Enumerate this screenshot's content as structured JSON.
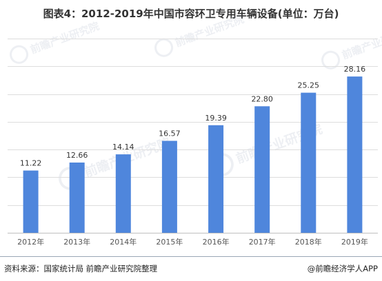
{
  "title": "图表4：2012-2019年中国市容环卫专用车辆设备(单位：万台)",
  "footer": {
    "source": "资料来源：国家统计局 前瞻产业研究院整理",
    "brand": "@前瞻经济学人APP"
  },
  "watermark": "前瞻产业研究院",
  "colors": {
    "bar": "#4f86dc",
    "grid": "#dddddd",
    "axis": "#bfbfbf"
  },
  "chart_data": {
    "type": "bar",
    "title": "图表4：2012-2019年中国市容环卫专用车辆设备(单位：万台)",
    "categories": [
      "2012年",
      "2013年",
      "2014年",
      "2015年",
      "2016年",
      "2017年",
      "2018年",
      "2019年"
    ],
    "values": [
      11.22,
      12.66,
      14.14,
      16.57,
      19.39,
      22.8,
      25.25,
      28.16
    ],
    "value_labels": [
      "11.22",
      "12.66",
      "14.14",
      "16.57",
      "19.39",
      "22.80",
      "25.25",
      "28.16"
    ],
    "ylim": [
      0,
      35
    ],
    "grid": true,
    "xlabel": "",
    "ylabel": ""
  }
}
